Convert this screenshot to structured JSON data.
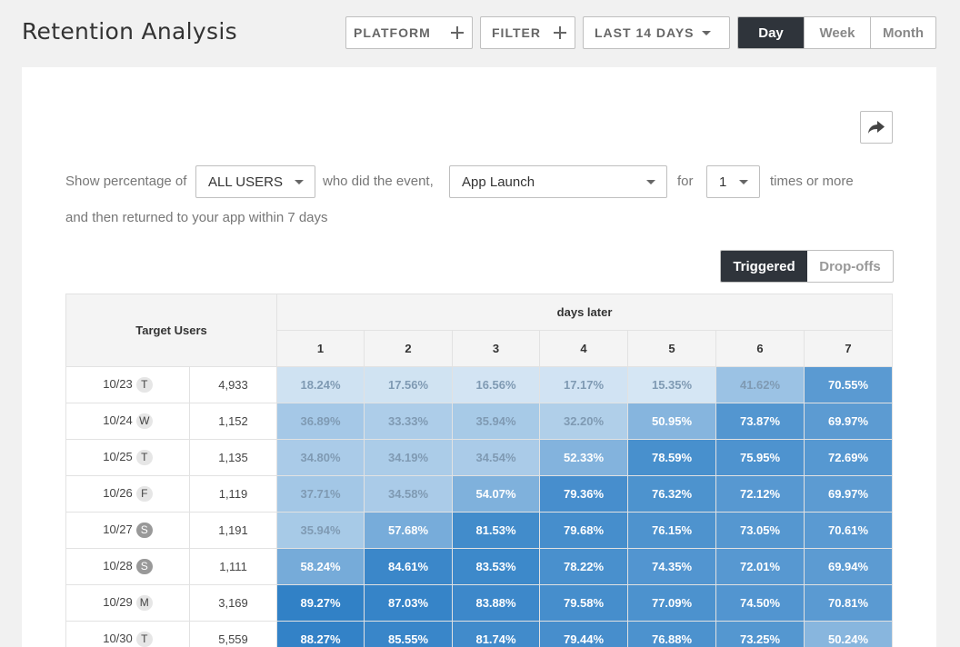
{
  "header": {
    "title": "Retention Analysis",
    "platform_label": "PLATFORM",
    "filter_label": "FILTER",
    "range_label": "LAST 14 DAYS",
    "granularity": [
      "Day",
      "Week",
      "Month"
    ],
    "granularity_selected": "Day"
  },
  "query": {
    "prefix": "Show percentage of",
    "segment_value": "ALL USERS",
    "middle": "who did the event,",
    "event_value": "App Launch",
    "for_text": "for",
    "times_value": "1",
    "suffix": "times or more",
    "line2": "and then returned to your app within 7 days"
  },
  "mode_toggle": {
    "options": [
      "Triggered",
      "Drop-offs"
    ],
    "selected": "Triggered"
  },
  "table": {
    "target_users_header": "Target Users",
    "days_later_header": "days later",
    "day_columns": [
      "1",
      "2",
      "3",
      "4",
      "5",
      "6",
      "7"
    ],
    "rows": [
      {
        "date": "10/23",
        "weekday": "T",
        "users": "4,933",
        "values": [
          "18.24%",
          "17.56%",
          "16.56%",
          "17.17%",
          "15.35%",
          "41.62%",
          "70.55%"
        ]
      },
      {
        "date": "10/24",
        "weekday": "W",
        "users": "1,152",
        "values": [
          "36.89%",
          "33.33%",
          "35.94%",
          "32.20%",
          "50.95%",
          "73.87%",
          "69.97%"
        ]
      },
      {
        "date": "10/25",
        "weekday": "T",
        "users": "1,135",
        "values": [
          "34.80%",
          "34.19%",
          "34.54%",
          "52.33%",
          "78.59%",
          "75.95%",
          "72.69%"
        ]
      },
      {
        "date": "10/26",
        "weekday": "F",
        "users": "1,119",
        "values": [
          "37.71%",
          "34.58%",
          "54.07%",
          "79.36%",
          "76.32%",
          "72.12%",
          "69.97%"
        ]
      },
      {
        "date": "10/27",
        "weekday": "S",
        "users": "1,191",
        "values": [
          "35.94%",
          "57.68%",
          "81.53%",
          "79.68%",
          "76.15%",
          "73.05%",
          "70.61%"
        ]
      },
      {
        "date": "10/28",
        "weekday": "S",
        "users": "1,111",
        "values": [
          "58.24%",
          "84.61%",
          "83.53%",
          "78.22%",
          "74.35%",
          "72.01%",
          "69.94%"
        ]
      },
      {
        "date": "10/29",
        "weekday": "M",
        "users": "3,169",
        "values": [
          "89.27%",
          "87.03%",
          "83.88%",
          "79.58%",
          "77.09%",
          "74.50%",
          "70.81%"
        ]
      },
      {
        "date": "10/30",
        "weekday": "T",
        "users": "5,559",
        "values": [
          "88.27%",
          "85.55%",
          "81.74%",
          "79.44%",
          "76.88%",
          "73.25%",
          "50.24%"
        ]
      }
    ]
  },
  "colors": {
    "accent_dark": "#2f343b",
    "heat_low": "#d6e6f4",
    "heat_high": "#2f80c6"
  }
}
